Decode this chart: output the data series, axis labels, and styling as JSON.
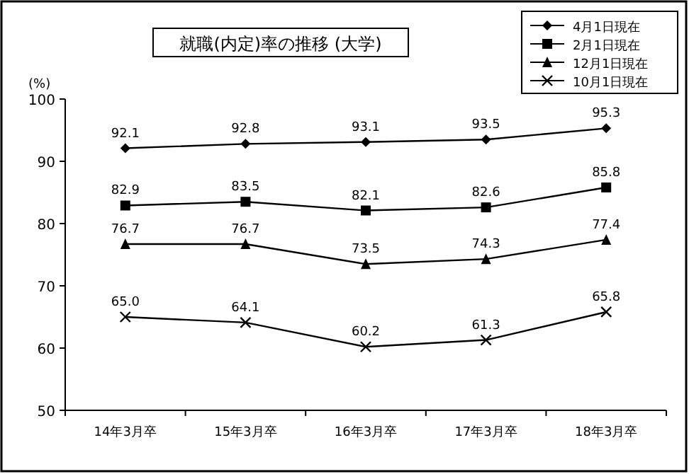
{
  "chart_data": {
    "type": "line",
    "title": "就職(内定)率の推移 (大学)",
    "ylabel": "(%)",
    "categories": [
      "14年3月卒",
      "15年3月卒",
      "16年3月卒",
      "17年3月卒",
      "18年3月卒"
    ],
    "series": [
      {
        "name": "4月1日現在",
        "color": "#000000",
        "marker": "diamond",
        "values": [
          92.1,
          92.8,
          93.1,
          93.5,
          95.3
        ]
      },
      {
        "name": "2月1日現在",
        "color": "#000000",
        "marker": "square",
        "values": [
          82.9,
          83.5,
          82.1,
          82.6,
          85.8
        ]
      },
      {
        "name": "12月1日現在",
        "color": "#000000",
        "marker": "triangle",
        "values": [
          76.7,
          76.7,
          73.5,
          74.3,
          77.4
        ]
      },
      {
        "name": "10月1日現在",
        "color": "#000000",
        "marker": "cross",
        "values": [
          65.0,
          64.1,
          60.2,
          61.3,
          65.8
        ],
        "value_labels": [
          "65.0",
          "64.1",
          "60.2",
          "61.3",
          "65.8"
        ]
      }
    ],
    "ylim": [
      50,
      100
    ],
    "yticks": [
      50,
      60,
      70,
      80,
      90,
      100
    ],
    "data_labels": true,
    "legend": "top right",
    "grid": false,
    "line_style": "solid"
  }
}
